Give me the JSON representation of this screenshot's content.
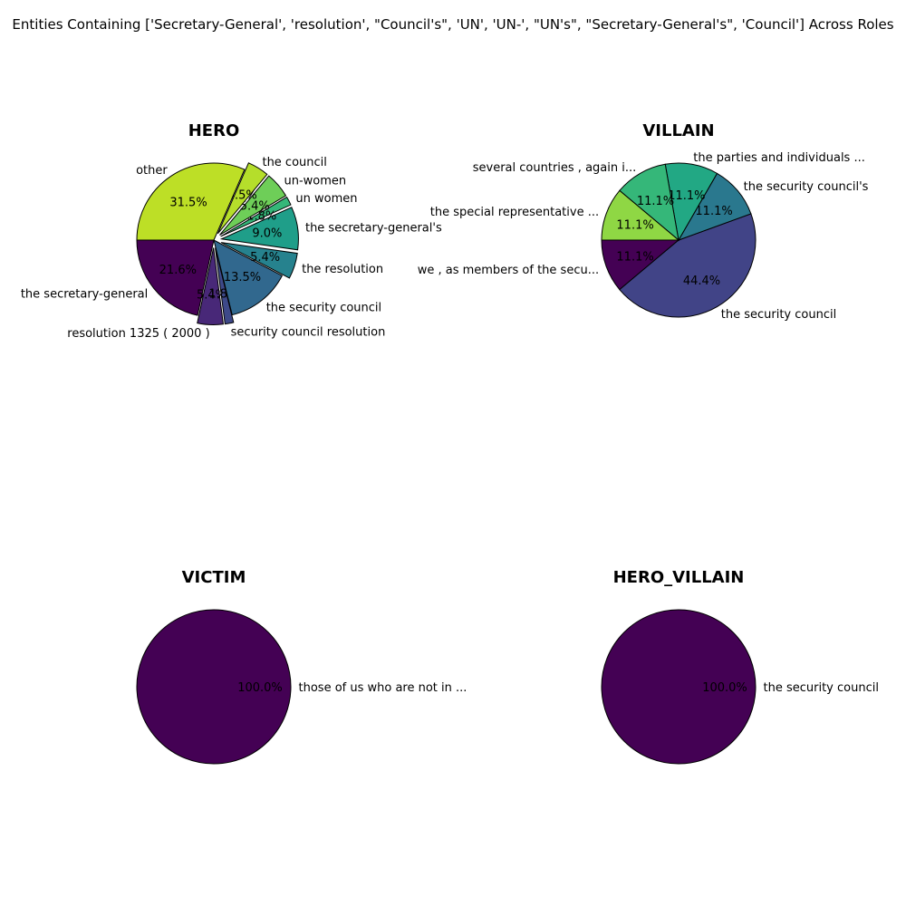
{
  "suptitle": "Entities Containing ['Secretary-General', 'resolution', \"Council's\", 'UN', 'UN-', \"UN's\", \"Secretary-General's\", 'Council'] Across Roles",
  "chart_data": [
    {
      "type": "pie",
      "title": "HERO",
      "labels": [
        "the secretary-general",
        "resolution 1325 ( 2000 )",
        "security council resolution",
        "the security council",
        "the resolution",
        "the secretary-general's",
        "un women",
        "un-women",
        "the council",
        "other"
      ],
      "values": [
        21.6,
        5.4,
        1.8,
        13.5,
        5.4,
        9.0,
        1.8,
        5.4,
        4.5,
        31.5
      ],
      "pct_labels": [
        "21.6%",
        "5.4%",
        "1.8%",
        "13.5%",
        "5.4%",
        "9.0%",
        "1.8%",
        "5.4%",
        "4.5%",
        "31.5%"
      ],
      "colors": [
        "#440154",
        "#482878",
        "#3e4989",
        "#31688e",
        "#26828e",
        "#1f9e89",
        "#35b779",
        "#6ece58",
        "#b5de2b",
        "#bddf26"
      ],
      "explode": [
        0,
        0.1,
        0.1,
        0,
        0.1,
        0.1,
        0.1,
        0.1,
        0.1,
        0
      ]
    },
    {
      "type": "pie",
      "title": "VILLAIN",
      "labels": [
        "we , as members of the secu...",
        "the security council",
        "the security council's",
        "the parties and individuals ...",
        "several countries , again i...",
        "the special representative ..."
      ],
      "values": [
        11.1,
        44.4,
        11.1,
        11.1,
        11.1,
        11.1
      ],
      "pct_labels": [
        "11.1%",
        "44.4%",
        "11.1%",
        "11.1%",
        "11.1%",
        "11.1%"
      ],
      "colors": [
        "#440154",
        "#414487",
        "#2a788e",
        "#22a884",
        "#35b779",
        "#8fd744"
      ],
      "explode": [
        0,
        0,
        0,
        0,
        0,
        0
      ]
    },
    {
      "type": "pie",
      "title": "VICTIM",
      "labels": [
        "those of us who are not in ..."
      ],
      "values": [
        100.0
      ],
      "pct_labels": [
        "100.0%"
      ],
      "colors": [
        "#440154"
      ],
      "explode": [
        0
      ]
    },
    {
      "type": "pie",
      "title": "HERO_VILLAIN",
      "labels": [
        "the security council"
      ],
      "values": [
        100.0
      ],
      "pct_labels": [
        "100.0%"
      ],
      "colors": [
        "#440154"
      ],
      "explode": [
        0
      ]
    }
  ]
}
